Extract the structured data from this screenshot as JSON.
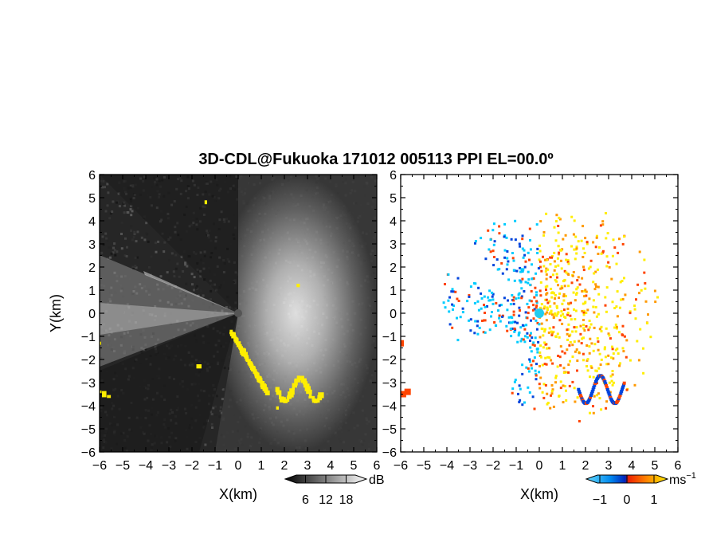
{
  "title": "3D-CDL@Fukuoka 171012 005113 PPI EL=00.0º",
  "chart_data": [
    {
      "type": "heatmap",
      "name": "reflectivity-ppi",
      "xlabel": "X(km)",
      "ylabel": "Y(km)",
      "xlim": [
        -6,
        6
      ],
      "ylim": [
        -6,
        6
      ],
      "x_ticks": [
        "−6",
        "−5",
        "−4",
        "−3",
        "−2",
        "−1",
        "0",
        "1",
        "2",
        "3",
        "4",
        "5",
        "6"
      ],
      "y_ticks": [
        "6",
        "5",
        "4",
        "3",
        "2",
        "1",
        "0",
        "−1",
        "−2",
        "−3",
        "−4",
        "−5",
        "−6"
      ],
      "colorbar": {
        "unit": "dB",
        "ticks": [
          "6",
          "12",
          "18"
        ],
        "tick_values": [
          6,
          12,
          18
        ],
        "range": [
          0,
          24
        ]
      },
      "colors": {
        "low": "#1a1a1a",
        "high": "#ffffff",
        "highlight": "#ffee00"
      }
    },
    {
      "type": "heatmap",
      "name": "doppler-velocity-ppi",
      "xlabel": "X(km)",
      "ylabel": "",
      "xlim": [
        -6,
        6
      ],
      "ylim": [
        -6,
        6
      ],
      "x_ticks": [
        "−6",
        "−5",
        "−4",
        "−3",
        "−2",
        "−1",
        "0",
        "1",
        "2",
        "3",
        "4",
        "5",
        "6"
      ],
      "y_ticks": [
        "6",
        "5",
        "4",
        "3",
        "2",
        "1",
        "0",
        "−1",
        "−2",
        "−3",
        "−4",
        "−5",
        "−6"
      ],
      "colorbar": {
        "unit": "ms",
        "unit_exp": "−1",
        "ticks": [
          "−1",
          "0",
          "1"
        ],
        "tick_values": [
          -1,
          0,
          1
        ],
        "range": [
          -1.5,
          1.5
        ]
      },
      "colors": {
        "neg_far": "#00ccff",
        "neg": "#0044dd",
        "pos": "#ff4400",
        "pos_far": "#ffee00"
      }
    }
  ]
}
